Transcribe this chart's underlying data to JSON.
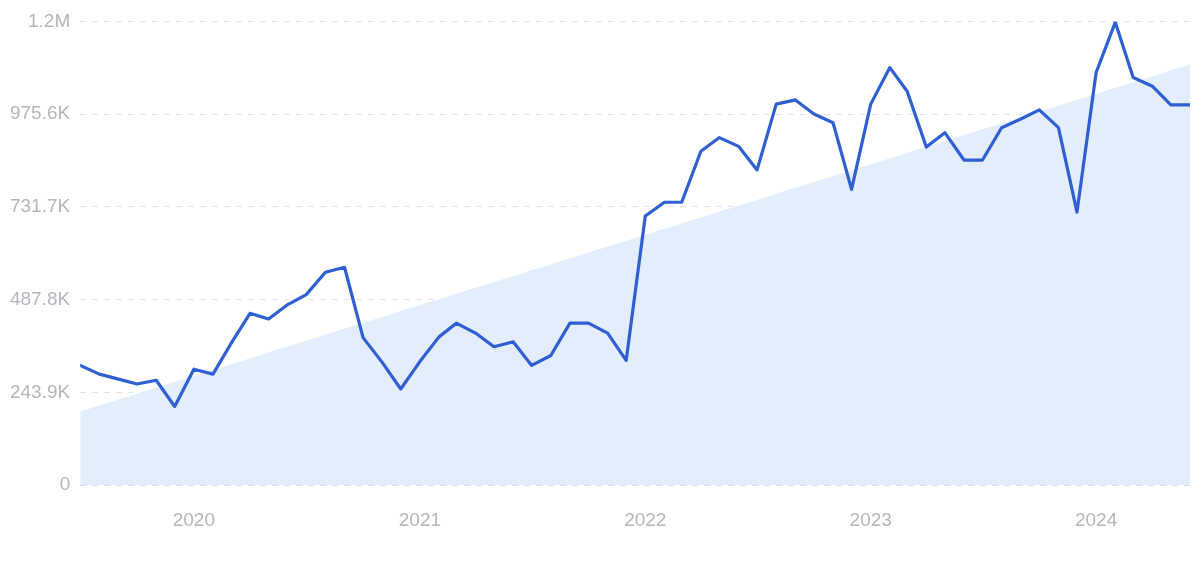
{
  "chart_data": {
    "type": "line",
    "grid": "y",
    "x": [
      "2019-07",
      "2019-08",
      "2019-09",
      "2019-10",
      "2019-11",
      "2019-12",
      "2020-01",
      "2020-02",
      "2020-03",
      "2020-04",
      "2020-05",
      "2020-06",
      "2020-07",
      "2020-08",
      "2020-09",
      "2020-10",
      "2020-11",
      "2020-12",
      "2021-01",
      "2021-02",
      "2021-03",
      "2021-04",
      "2021-05",
      "2021-06",
      "2021-07",
      "2021-08",
      "2021-09",
      "2021-10",
      "2021-11",
      "2021-12",
      "2022-01",
      "2022-02",
      "2022-03",
      "2022-04",
      "2022-05",
      "2022-06",
      "2022-07",
      "2022-08",
      "2022-09",
      "2022-10",
      "2022-11",
      "2022-12",
      "2023-01",
      "2023-02",
      "2023-03",
      "2023-04",
      "2023-05",
      "2023-06",
      "2023-07",
      "2023-08",
      "2023-09",
      "2023-10",
      "2023-11",
      "2023-12",
      "2024-01",
      "2024-02",
      "2024-03",
      "2024-04",
      "2024-05",
      "2024-06"
    ],
    "series": [
      {
        "type": "area",
        "color": "#e3edfb",
        "x": [
          "2019-07",
          "2024-06"
        ],
        "values": [
          194000,
          1106000
        ]
      },
      {
        "type": "line",
        "color": "#2f5fd3",
        "values": [
          315000,
          292000,
          279000,
          266000,
          276000,
          207000,
          305000,
          292000,
          372000,
          452000,
          437000,
          475000,
          501000,
          560000,
          573000,
          388000,
          323000,
          253000,
          325000,
          390000,
          426000,
          400000,
          364000,
          377000,
          315000,
          341000,
          426000,
          426000,
          400000,
          328000,
          708000,
          744000,
          744000,
          878000,
          914000,
          891000,
          829000,
          1002000,
          1013000,
          976000,
          953000,
          778000,
          1002000,
          1098000,
          1036000,
          889000,
          927000,
          855000,
          855000,
          940000,
          963000,
          987000,
          940000,
          718000,
          1085000,
          1217000,
          1072000,
          1049000,
          1000000,
          1000000
        ]
      }
    ],
    "xlim": [
      "2019-07",
      "2024-06"
    ],
    "xticks": [
      "2020",
      "2021",
      "2022",
      "2023",
      "2024"
    ],
    "ylim": [
      0,
      1219500
    ],
    "yticks": [
      0,
      {
        "value": 243900,
        "label": "243.9K"
      },
      {
        "value": 487800,
        "label": "487.8K"
      },
      {
        "value": 731700,
        "label": "731.7K"
      },
      {
        "value": 975600,
        "label": "975.6K"
      },
      {
        "value": 1219500,
        "label": "1.2M"
      }
    ]
  }
}
